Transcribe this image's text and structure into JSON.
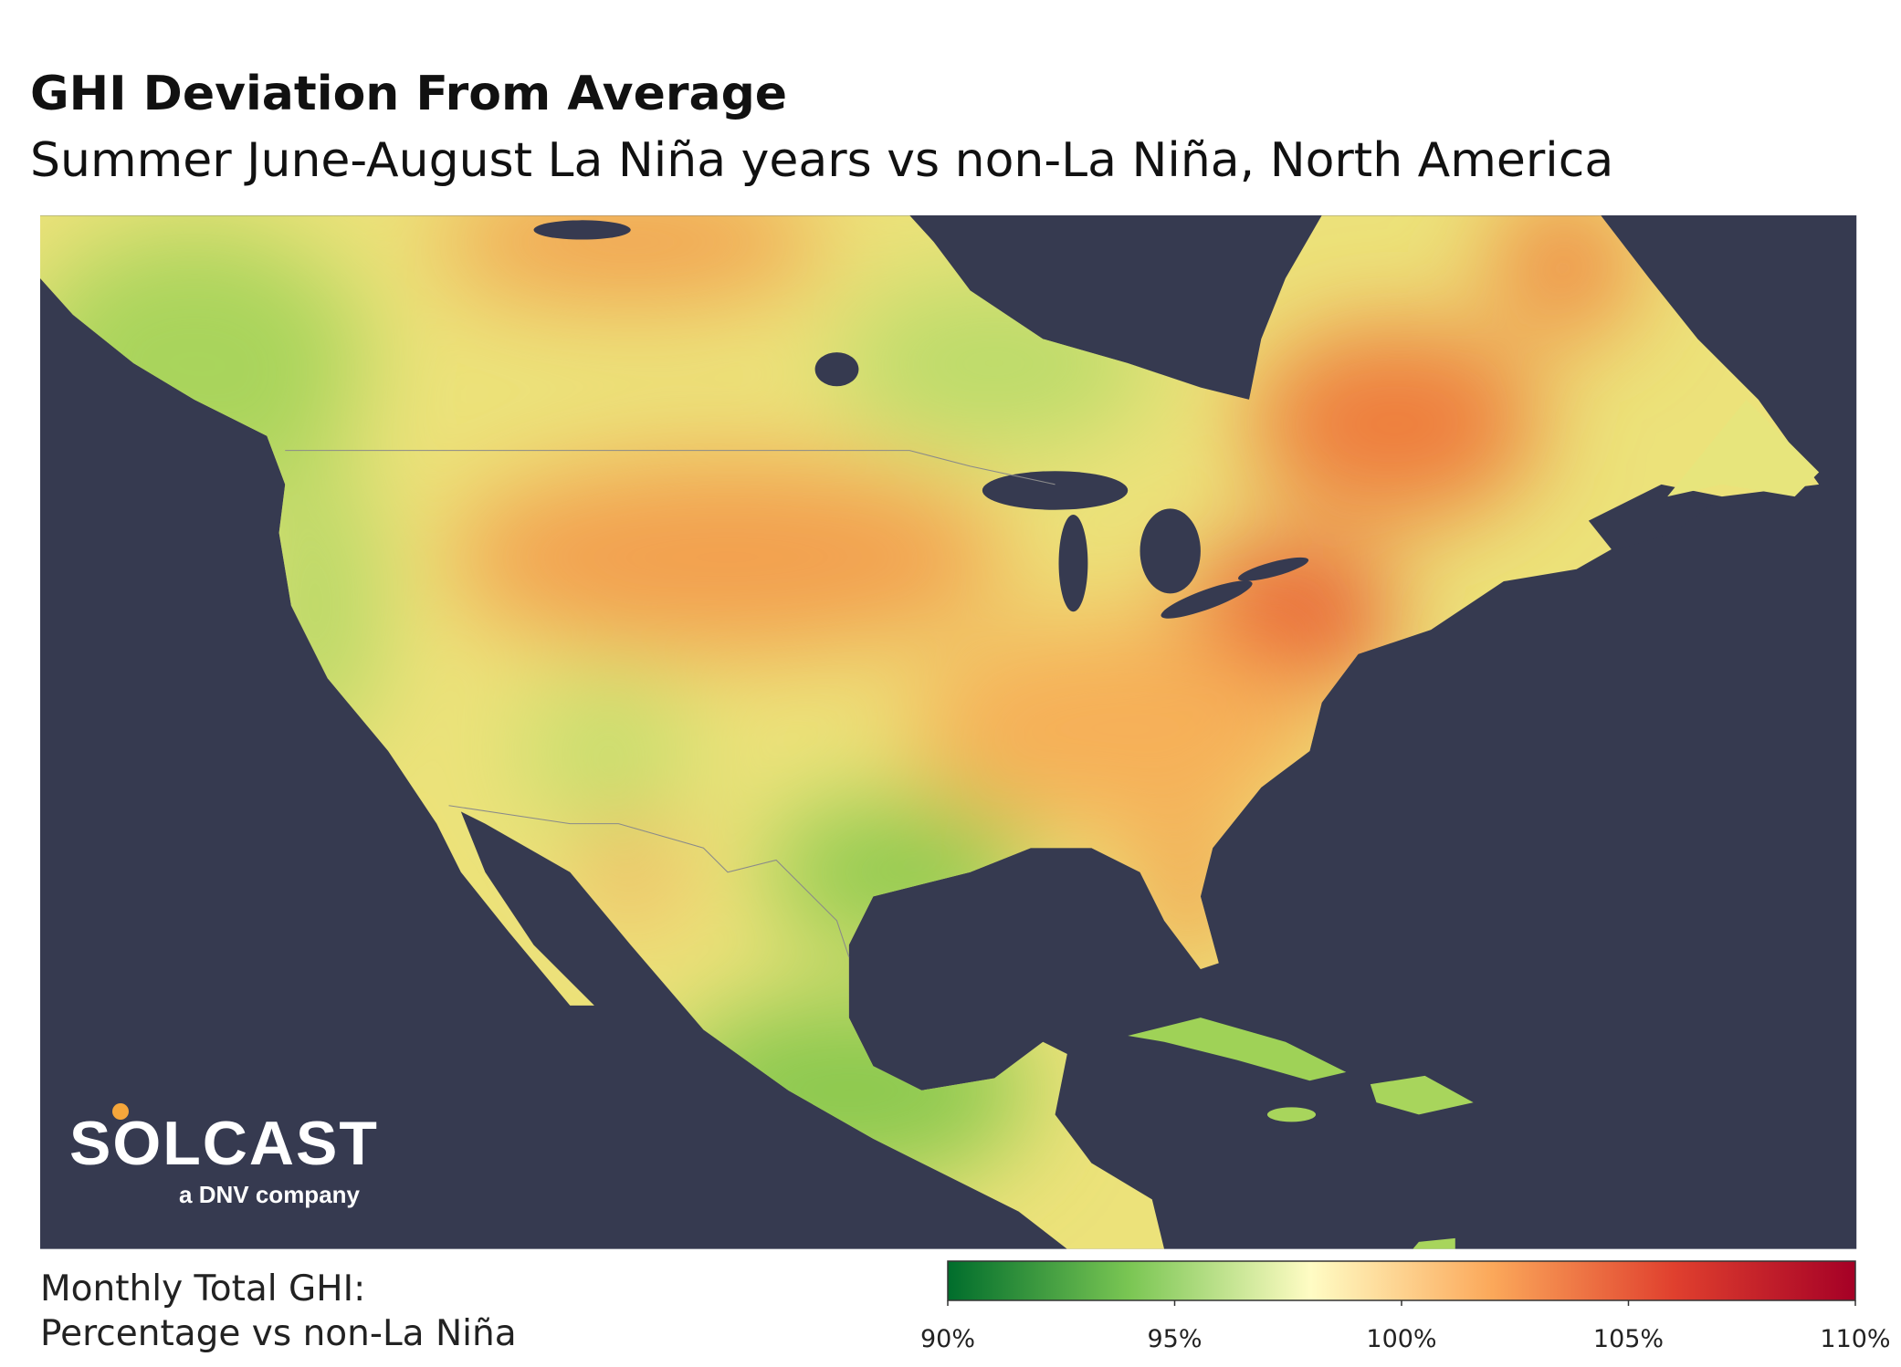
{
  "header": {
    "title": "GHI Deviation From Average",
    "subtitle": "Summer June-August La Niña years vs non-La Niña, North America"
  },
  "logo": {
    "name": "SOLCAST",
    "tagline": "a DNV company"
  },
  "legend": {
    "title_lines": [
      "Monthly Total GHI:",
      "Percentage vs non-La Niña"
    ],
    "range": [
      90,
      110
    ],
    "colors": [
      "#006d2c",
      "#7ac653",
      "#fffcc4",
      "#fba85a",
      "#e0402e",
      "#a50026"
    ],
    "ticks": [
      {
        "value": 90,
        "label": "90%"
      },
      {
        "value": 95,
        "label": "95%"
      },
      {
        "value": 100,
        "label": "100%"
      },
      {
        "value": 105,
        "label": "105%"
      },
      {
        "value": 110,
        "label": "110%"
      }
    ]
  }
}
